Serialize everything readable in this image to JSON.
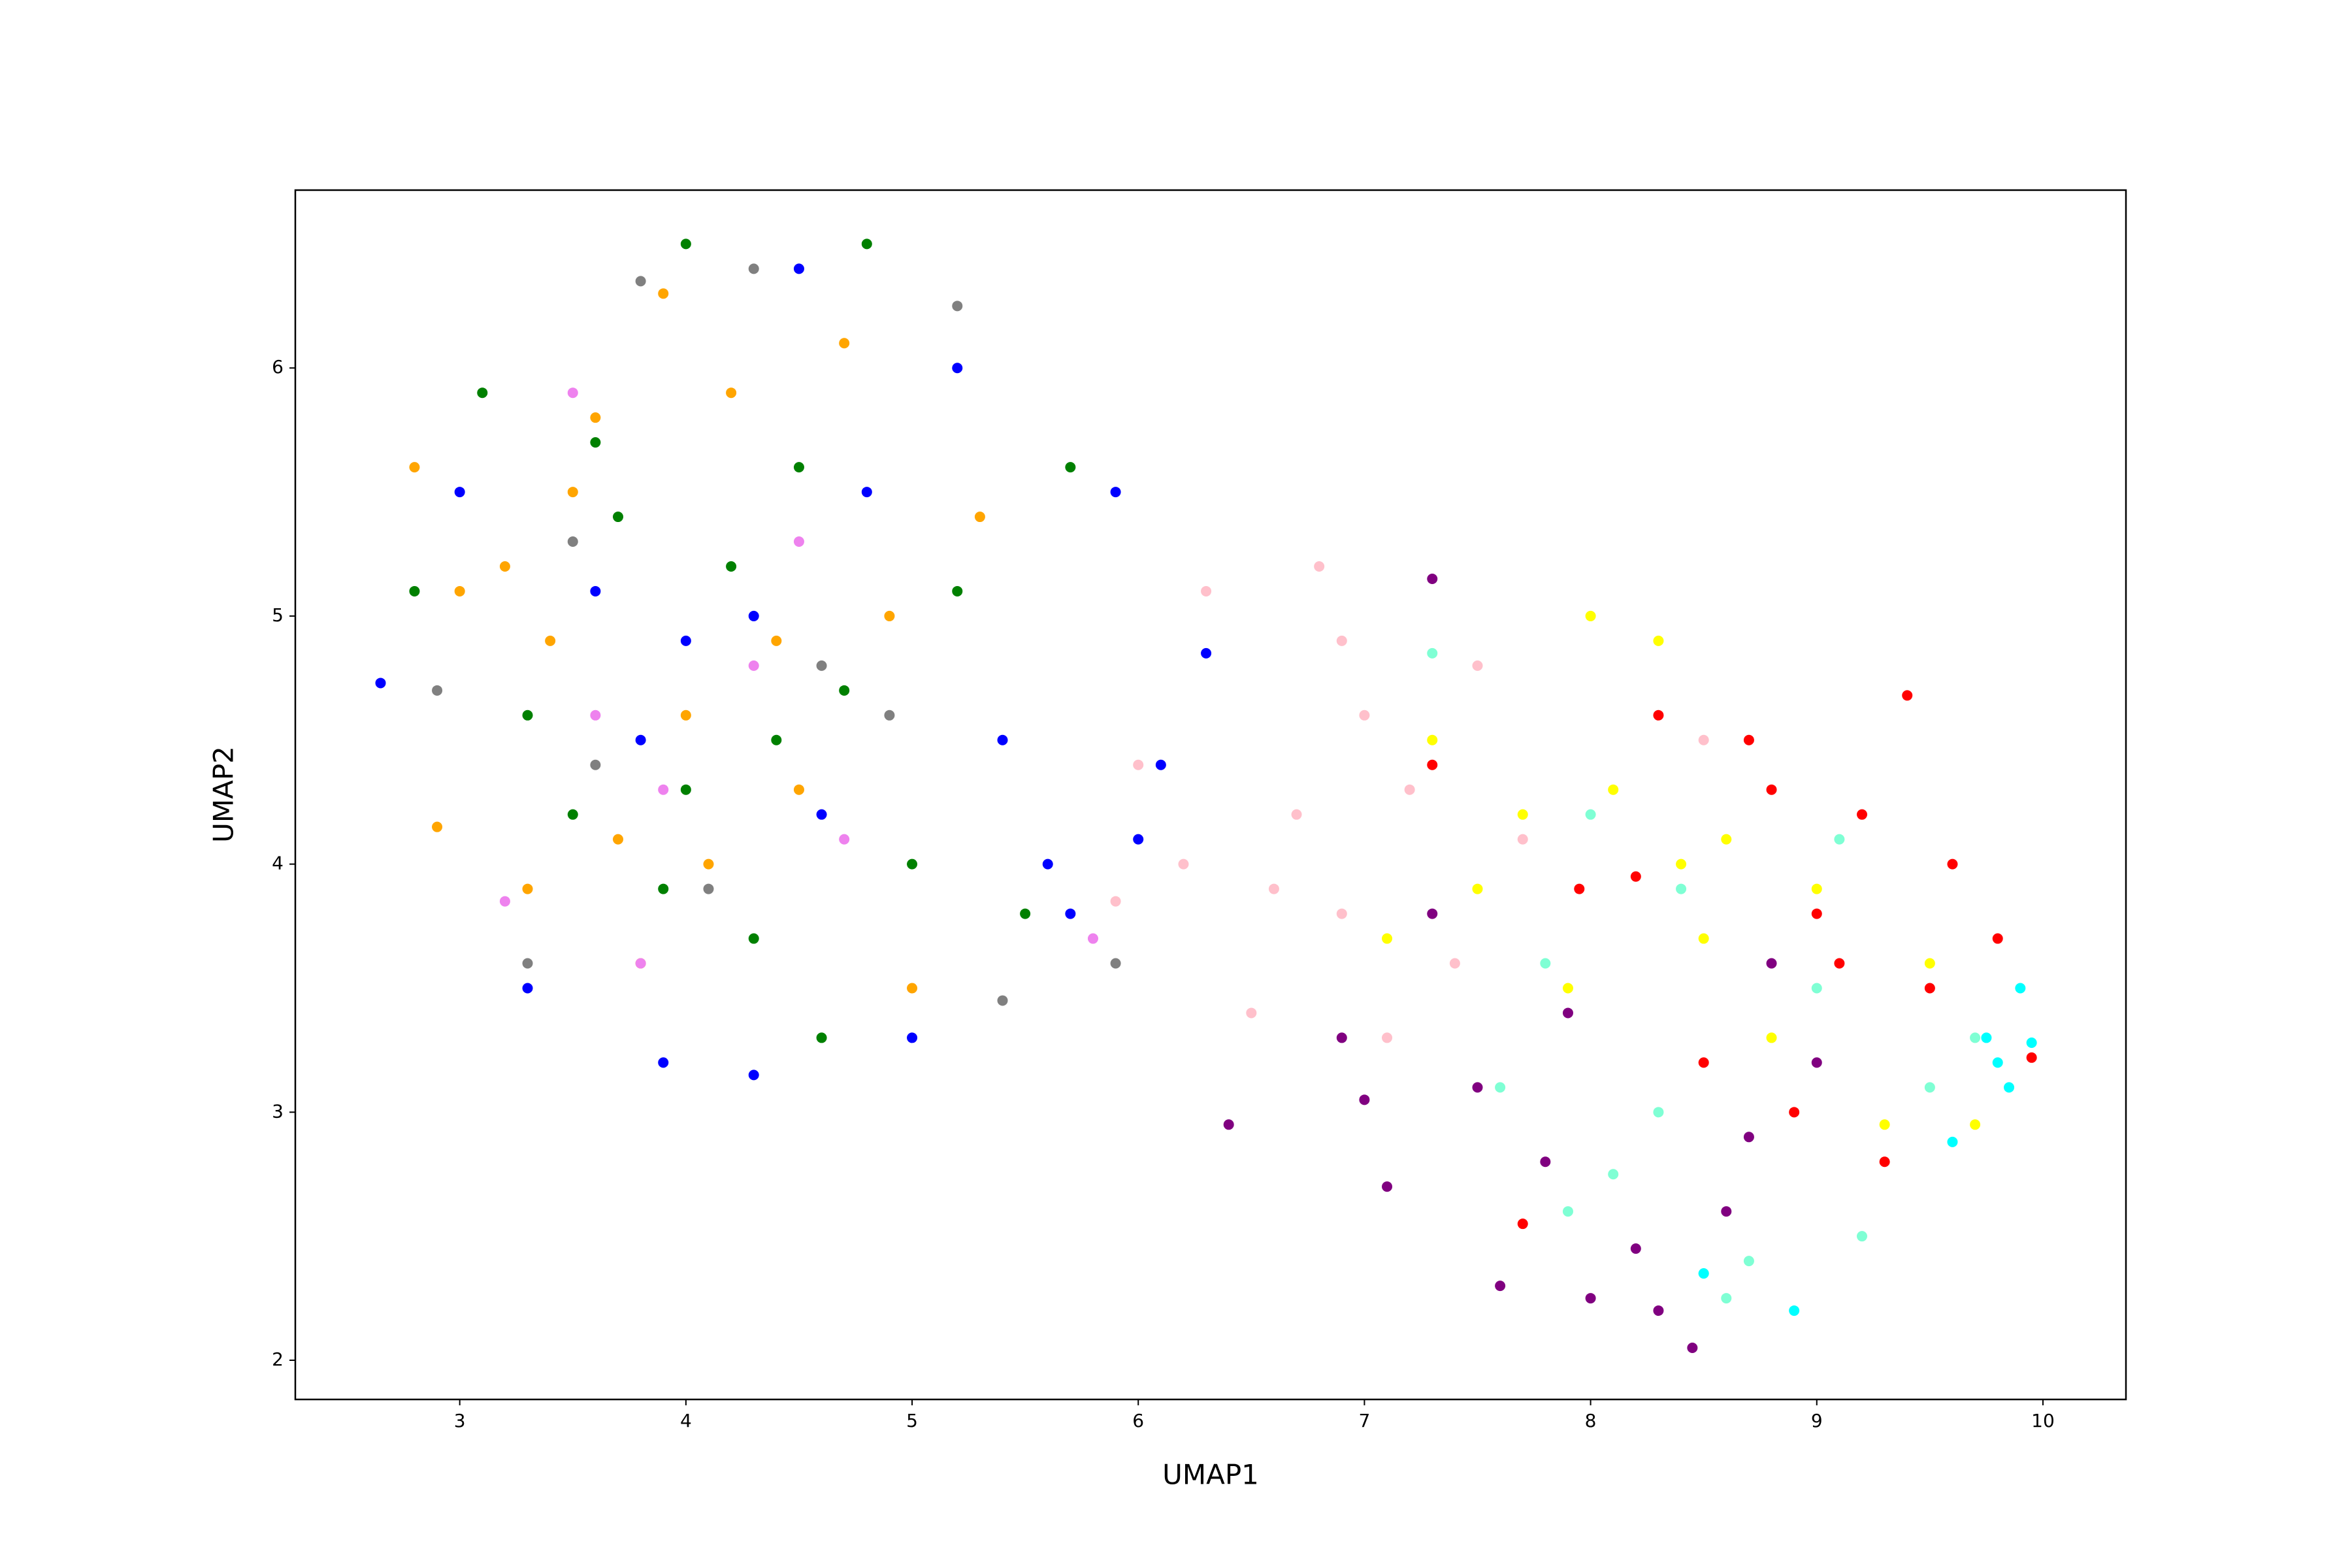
{
  "chart_data": {
    "type": "scatter",
    "x_label": "UMAP1",
    "y_label": "UMAP2",
    "xlim": [
      2.273,
      10.367
    ],
    "ylim": [
      1.842,
      6.717
    ],
    "xticks": [
      3,
      4,
      5,
      6,
      7,
      8,
      9,
      10
    ],
    "yticks": [
      2,
      3,
      4,
      5,
      6
    ],
    "grid": false,
    "series": [
      {
        "color": "orange",
        "x": [
          2.8,
          3.0,
          3.2,
          3.4,
          3.5,
          3.7,
          3.9,
          4.0,
          4.2,
          4.5,
          4.7,
          5.0,
          5.3,
          3.3,
          3.8,
          4.4,
          2.9,
          3.6,
          4.1,
          4.9
        ],
        "values": [
          5.6,
          5.1,
          5.2,
          4.9,
          5.5,
          4.1,
          6.3,
          4.6,
          5.9,
          4.3,
          6.1,
          3.5,
          5.4,
          3.9,
          3.6,
          4.9,
          4.15,
          5.8,
          4.0,
          5.0
        ]
      },
      {
        "color": "green",
        "x": [
          2.8,
          3.1,
          3.3,
          3.5,
          3.7,
          3.9,
          4.0,
          4.2,
          4.4,
          4.6,
          4.8,
          5.0,
          5.2,
          5.5,
          4.0,
          3.6,
          4.3,
          4.5,
          5.7,
          4.7
        ],
        "values": [
          5.1,
          5.9,
          4.6,
          4.2,
          5.4,
          3.9,
          6.5,
          5.2,
          4.5,
          3.3,
          6.5,
          4.0,
          5.1,
          3.8,
          4.3,
          5.7,
          3.7,
          5.6,
          5.6,
          4.7
        ]
      },
      {
        "color": "blue",
        "x": [
          2.65,
          3.0,
          3.3,
          3.6,
          3.9,
          4.0,
          4.3,
          4.5,
          4.6,
          4.8,
          5.0,
          5.2,
          5.4,
          5.6,
          5.9,
          6.1,
          6.3,
          4.3,
          3.8,
          5.7,
          6.0
        ],
        "values": [
          4.73,
          5.5,
          3.5,
          5.1,
          3.2,
          4.9,
          3.15,
          6.4,
          4.2,
          5.5,
          3.3,
          6.0,
          4.5,
          4.0,
          5.5,
          4.4,
          4.85,
          5.0,
          4.5,
          3.8,
          4.1
        ]
      },
      {
        "color": "gray",
        "x": [
          2.9,
          3.3,
          3.6,
          3.8,
          4.1,
          4.3,
          4.6,
          5.2,
          5.4,
          5.9,
          4.9,
          3.5
        ],
        "values": [
          4.7,
          3.6,
          4.4,
          6.35,
          3.9,
          6.4,
          4.8,
          6.25,
          3.45,
          3.6,
          4.6,
          5.3
        ]
      },
      {
        "color": "violet",
        "x": [
          3.2,
          3.5,
          3.9,
          4.3,
          4.7,
          5.8,
          3.8,
          4.5,
          3.6
        ],
        "values": [
          3.85,
          5.9,
          4.3,
          4.8,
          4.1,
          3.7,
          3.6,
          5.3,
          4.6
        ]
      },
      {
        "color": "pink",
        "x": [
          6.0,
          6.3,
          6.5,
          6.7,
          6.8,
          6.9,
          7.0,
          7.2,
          7.4,
          6.6,
          6.2,
          7.5,
          6.9,
          7.1,
          5.9,
          7.7,
          8.5
        ],
        "values": [
          4.4,
          5.1,
          3.4,
          4.2,
          5.2,
          3.8,
          4.6,
          4.3,
          3.6,
          3.9,
          4.0,
          4.8,
          4.9,
          3.3,
          3.85,
          4.1,
          4.5
        ]
      },
      {
        "color": "purple",
        "x": [
          6.4,
          6.9,
          7.1,
          7.3,
          7.5,
          7.6,
          7.8,
          8.0,
          8.2,
          8.3,
          8.45,
          8.6,
          8.8,
          7.3,
          7.0,
          9.0,
          7.9,
          8.7
        ],
        "values": [
          2.95,
          3.3,
          2.7,
          5.15,
          3.1,
          2.3,
          2.8,
          2.25,
          2.45,
          2.2,
          2.05,
          2.6,
          3.6,
          3.8,
          3.05,
          3.2,
          3.4,
          2.9
        ]
      },
      {
        "color": "yellow",
        "x": [
          7.3,
          7.5,
          7.7,
          7.9,
          8.0,
          8.1,
          8.3,
          8.5,
          8.6,
          8.8,
          9.0,
          9.3,
          9.5,
          9.7,
          7.1,
          8.4
        ],
        "values": [
          4.5,
          3.9,
          4.2,
          3.5,
          5.0,
          4.3,
          4.9,
          3.7,
          4.1,
          3.3,
          3.9,
          2.95,
          3.6,
          2.95,
          3.7,
          4.0
        ]
      },
      {
        "color": "red",
        "x": [
          7.7,
          7.95,
          8.3,
          8.5,
          8.7,
          8.9,
          9.0,
          9.2,
          9.4,
          9.5,
          9.6,
          9.8,
          9.95,
          8.8,
          9.1,
          8.2,
          9.3,
          7.3
        ],
        "values": [
          2.55,
          3.9,
          4.6,
          3.2,
          4.5,
          3.0,
          3.8,
          4.2,
          4.68,
          3.5,
          4.0,
          3.7,
          3.22,
          4.3,
          3.6,
          3.95,
          2.8,
          4.4
        ]
      },
      {
        "color": "aquamarine",
        "x": [
          7.3,
          7.6,
          7.9,
          8.1,
          8.3,
          8.5,
          8.7,
          9.0,
          9.2,
          9.5,
          9.7,
          8.0,
          7.8,
          9.1,
          8.6,
          8.4
        ],
        "values": [
          4.85,
          3.1,
          2.6,
          2.75,
          3.0,
          2.35,
          2.4,
          3.5,
          2.5,
          3.1,
          3.3,
          4.2,
          3.6,
          4.1,
          2.25,
          3.9
        ]
      },
      {
        "color": "cyan",
        "x": [
          9.75,
          9.8,
          9.9,
          9.95,
          9.85,
          8.9,
          9.6,
          8.5
        ],
        "values": [
          3.3,
          3.2,
          3.5,
          3.28,
          3.1,
          2.2,
          2.88,
          2.35
        ]
      }
    ]
  }
}
